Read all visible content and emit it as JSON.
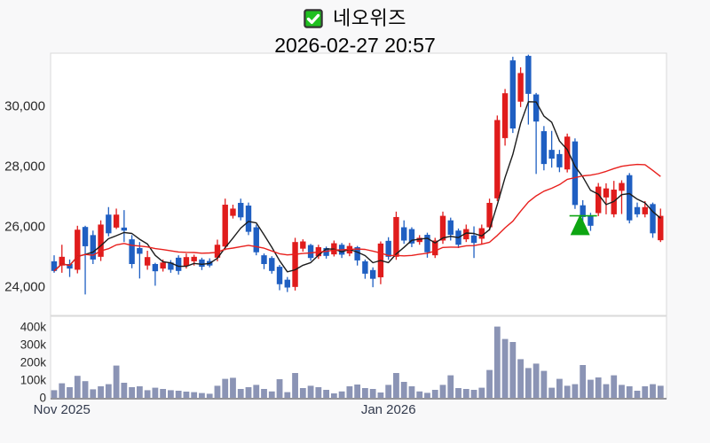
{
  "header": {
    "title": "네오위즈",
    "datetime": "2026-02-27 20:57",
    "checkbox_icon": "checked-green-checkbox"
  },
  "colors": {
    "page_bg": "#f8f8f9",
    "panel_bg": "#ffffff",
    "panel_border": "#dadada",
    "baseline": "#95959b",
    "axis_text": "#2a2a2a",
    "month_text": "#333b4e",
    "checkbox_fill": "#1fc01f",
    "checkbox_border": "#333333"
  },
  "chart_data": {
    "type": "candlestick",
    "title": "네오위즈",
    "subtitle": "2026-02-27 20:57",
    "legend_position": "none",
    "grid": false,
    "up_color": "#e01c1c",
    "down_color": "#1f5fc2",
    "volume_color": "#8b94b5",
    "price_axis": {
      "range": [
        23050,
        31750
      ],
      "ticks": [
        {
          "value": 30000,
          "label": "30,000"
        },
        {
          "value": 28000,
          "label": "28,000"
        },
        {
          "value": 26000,
          "label": "26,000"
        },
        {
          "value": 24000,
          "label": "24,000"
        }
      ]
    },
    "volume_axis": {
      "range": [
        0,
        455000
      ],
      "ticks": [
        {
          "value": 400,
          "label": "400k"
        },
        {
          "value": 300,
          "label": "300k"
        },
        {
          "value": 200,
          "label": "200k"
        },
        {
          "value": 100,
          "label": "100k"
        },
        {
          "value": 0,
          "label": "0"
        }
      ]
    },
    "x_axis": {
      "labels": [
        {
          "candle_index": 1,
          "label": "Nov 2025"
        },
        {
          "candle_index": 43,
          "label": "Jan 2026"
        }
      ]
    },
    "ma_lines": [
      {
        "name": "ma-short",
        "period": 5,
        "color": "#1c1c1c"
      },
      {
        "name": "ma-long",
        "period": 20,
        "color": "#e8201d"
      }
    ],
    "marker": {
      "shape": "triangle-up",
      "color": "#0da512",
      "candle_index": 68,
      "apex_price": 26400,
      "base_price": 25710,
      "line_price": 26350
    },
    "candles_format": [
      "open",
      "high",
      "low",
      "close",
      "volume_k"
    ],
    "candles": [
      [
        24840,
        25040,
        24460,
        24520,
        43
      ],
      [
        24700,
        25390,
        24460,
        24990,
        82
      ],
      [
        24750,
        24900,
        24320,
        24600,
        60
      ],
      [
        24560,
        26020,
        24440,
        25890,
        124
      ],
      [
        25980,
        26020,
        23740,
        25340,
        94
      ],
      [
        25710,
        25860,
        24750,
        24900,
        48
      ],
      [
        24990,
        26200,
        24850,
        26060,
        65
      ],
      [
        26390,
        26640,
        25670,
        25770,
        77
      ],
      [
        25960,
        26590,
        25910,
        26390,
        182
      ],
      [
        25960,
        26540,
        25480,
        25860,
        85
      ],
      [
        25570,
        25710,
        24610,
        24750,
        60
      ],
      [
        25280,
        25480,
        24270,
        25090,
        65
      ],
      [
        24700,
        25190,
        24560,
        24980,
        43
      ],
      [
        24750,
        24790,
        24030,
        24510,
        57
      ],
      [
        24600,
        24900,
        24500,
        24800,
        50
      ],
      [
        24800,
        24880,
        24460,
        24560,
        43
      ],
      [
        24960,
        25040,
        24400,
        24520,
        40
      ],
      [
        24690,
        25100,
        24600,
        24980,
        35
      ],
      [
        24840,
        25060,
        24700,
        24990,
        32
      ],
      [
        24900,
        24960,
        24550,
        24660,
        27
      ],
      [
        24850,
        24940,
        24640,
        24700,
        23
      ],
      [
        24960,
        25560,
        24840,
        25390,
        68
      ],
      [
        25330,
        26920,
        25210,
        26720,
        107
      ],
      [
        26350,
        26720,
        26260,
        26590,
        113
      ],
      [
        26780,
        26920,
        26200,
        26300,
        50
      ],
      [
        26690,
        26790,
        25710,
        25820,
        60
      ],
      [
        25970,
        26060,
        25040,
        25140,
        73
      ],
      [
        25040,
        25100,
        24580,
        24750,
        50
      ],
      [
        24950,
        25010,
        24430,
        24520,
        36
      ],
      [
        24660,
        24720,
        23880,
        24080,
        105
      ],
      [
        24230,
        24320,
        23820,
        23970,
        32
      ],
      [
        23990,
        25620,
        23870,
        25480,
        140
      ],
      [
        25260,
        25570,
        25160,
        25500,
        55
      ],
      [
        25380,
        25420,
        24860,
        24950,
        68
      ],
      [
        25010,
        25390,
        24920,
        25310,
        60
      ],
      [
        25280,
        25330,
        24930,
        25020,
        45
      ],
      [
        25070,
        25530,
        25000,
        25440,
        25
      ],
      [
        25390,
        25450,
        24950,
        25060,
        36
      ],
      [
        25100,
        25450,
        25010,
        25350,
        65
      ],
      [
        25310,
        25350,
        24700,
        24870,
        75
      ],
      [
        24840,
        24900,
        24260,
        24430,
        55
      ],
      [
        24550,
        24640,
        23980,
        24260,
        50
      ],
      [
        24310,
        25500,
        24080,
        25430,
        30
      ],
      [
        25520,
        25640,
        24890,
        24990,
        73
      ],
      [
        24990,
        26490,
        24890,
        26310,
        140
      ],
      [
        25970,
        26200,
        25420,
        25530,
        90
      ],
      [
        25910,
        25970,
        25310,
        25430,
        65
      ],
      [
        25480,
        25710,
        25390,
        25620,
        36
      ],
      [
        25720,
        25790,
        24960,
        25140,
        28
      ],
      [
        25040,
        25620,
        24950,
        25530,
        45
      ],
      [
        25530,
        26490,
        25420,
        26350,
        73
      ],
      [
        26200,
        26290,
        25530,
        25720,
        127
      ],
      [
        25860,
        25930,
        25280,
        25390,
        55
      ],
      [
        25570,
        26060,
        25480,
        25910,
        50
      ],
      [
        25700,
        26000,
        24950,
        25450,
        45
      ],
      [
        25590,
        26060,
        25390,
        25940,
        57
      ],
      [
        25970,
        26920,
        25860,
        26780,
        157
      ],
      [
        26930,
        29680,
        26840,
        29530,
        402
      ],
      [
        28930,
        30560,
        28680,
        30420,
        332
      ],
      [
        31510,
        31630,
        29100,
        29250,
        315
      ],
      [
        30140,
        31280,
        29960,
        31090,
        218
      ],
      [
        31660,
        31700,
        29380,
        30400,
        168
      ],
      [
        30380,
        30430,
        27740,
        29480,
        193
      ],
      [
        29160,
        29330,
        27860,
        28070,
        152
      ],
      [
        28540,
        29170,
        27950,
        28250,
        57
      ],
      [
        28400,
        28540,
        27800,
        27960,
        107
      ],
      [
        27890,
        29080,
        27790,
        28980,
        68
      ],
      [
        28820,
        28920,
        26580,
        26710,
        77
      ],
      [
        26700,
        26870,
        26100,
        26310,
        185
      ],
      [
        26350,
        26450,
        25850,
        26020,
        102
      ],
      [
        26440,
        27440,
        26340,
        27320,
        115
      ],
      [
        26960,
        27430,
        26400,
        27260,
        77
      ],
      [
        26400,
        27510,
        26300,
        27220,
        127
      ],
      [
        27180,
        27530,
        26410,
        27440,
        73
      ],
      [
        27700,
        27770,
        26100,
        26200,
        65
      ],
      [
        26640,
        26790,
        26300,
        26400,
        40
      ],
      [
        26400,
        26840,
        26300,
        26640,
        65
      ],
      [
        26740,
        26790,
        25620,
        25770,
        77
      ],
      [
        25540,
        26590,
        25480,
        26350,
        68
      ]
    ]
  }
}
